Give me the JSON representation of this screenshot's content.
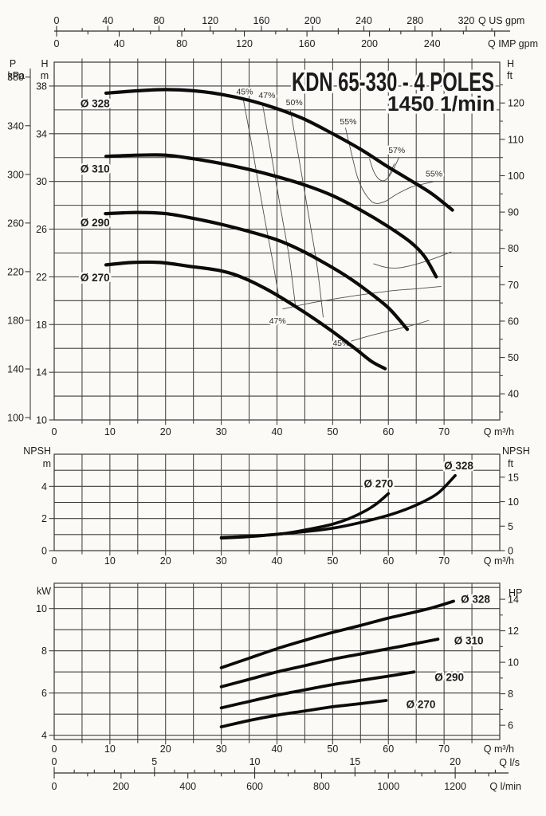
{
  "colors": {
    "background": "#fbfaf7",
    "grid": "#3e3e3e",
    "curve": "#0b0b0b",
    "efficiency_line": "#4f4f4f",
    "text": "#1c1c1c"
  },
  "title": {
    "model": "KDN 65-330 - 4 POLES",
    "speed": "1450 1/min"
  },
  "units": {
    "pressure": "P",
    "pressure_unit": "kPa",
    "head": "H",
    "meters": "m",
    "feet": "ft",
    "npsh": "NPSH",
    "kw": "kW",
    "hp": "HP",
    "q_us_gpm": "Q US gpm",
    "q_imp_gpm": "Q IMP gpm",
    "q_m3h": "Q m³/h",
    "q_ls": "Q l/s",
    "q_lmin": "Q l/min"
  },
  "top_axis": {
    "us": {
      "unit": "Q US gpm",
      "tick_labels": [
        0,
        40,
        80,
        120,
        160,
        200,
        240,
        280,
        320
      ]
    },
    "imp": {
      "unit": "Q IMP gpm",
      "tick_labels": [
        0,
        40,
        80,
        120,
        160,
        200,
        240
      ]
    }
  },
  "bottom_axis": {
    "ls": {
      "unit": "Q l/s",
      "tick_labels": [
        0,
        5,
        10,
        15,
        20
      ]
    },
    "lmin": {
      "unit": "Q l/min",
      "tick_labels": [
        0,
        200,
        400,
        600,
        800,
        1000,
        1200
      ]
    }
  },
  "chart_data": [
    {
      "id": "head",
      "type": "line",
      "title": "KDN 65-330 - 4 POLES",
      "subtitle": "1450 1/min",
      "x_axis": {
        "unit": "Q m³/h",
        "range": [
          0,
          80
        ],
        "tick_labels": [
          0,
          10,
          20,
          30,
          40,
          50,
          60,
          70
        ],
        "grid_step": 5
      },
      "y_axis_m": {
        "unit": "H m",
        "range": [
          10,
          40
        ],
        "tick_labels": [
          38,
          34,
          30,
          26,
          22,
          18,
          14,
          10
        ],
        "grid_step": 2
      },
      "y_axis_kpa": {
        "unit": "P kPa",
        "tick_labels": [
          380,
          340,
          300,
          260,
          220,
          180,
          140,
          100
        ]
      },
      "y_axis_ft": {
        "unit": "H ft",
        "tick_labels": [
          120,
          110,
          100,
          90,
          80,
          70,
          60,
          50,
          40
        ]
      },
      "series": [
        {
          "name": "Ø 328",
          "label_at": [
            4.7,
            36.5
          ],
          "points": [
            [
              9.3,
              37.4
            ],
            [
              15,
              37.6
            ],
            [
              20,
              37.7
            ],
            [
              25,
              37.6
            ],
            [
              30,
              37.3
            ],
            [
              35,
              36.8
            ],
            [
              40,
              36.1
            ],
            [
              45,
              35.2
            ],
            [
              50,
              34.0
            ],
            [
              55,
              32.7
            ],
            [
              60,
              31.2
            ],
            [
              65,
              29.8
            ],
            [
              68,
              28.9
            ],
            [
              71.5,
              27.6
            ]
          ]
        },
        {
          "name": "Ø 310",
          "label_at": [
            4.7,
            31.0
          ],
          "points": [
            [
              9.3,
              32.1
            ],
            [
              15,
              32.2
            ],
            [
              20,
              32.2
            ],
            [
              25,
              31.9
            ],
            [
              30,
              31.5
            ],
            [
              35,
              31.0
            ],
            [
              40,
              30.4
            ],
            [
              45,
              29.7
            ],
            [
              50,
              28.8
            ],
            [
              55,
              27.6
            ],
            [
              60,
              26.2
            ],
            [
              64,
              24.9
            ],
            [
              66.5,
              23.7
            ],
            [
              68.6,
              22.0
            ]
          ]
        },
        {
          "name": "Ø 290",
          "label_at": [
            4.7,
            26.5
          ],
          "points": [
            [
              9.2,
              27.3
            ],
            [
              15,
              27.4
            ],
            [
              20,
              27.3
            ],
            [
              25,
              26.9
            ],
            [
              30,
              26.4
            ],
            [
              35,
              25.8
            ],
            [
              40,
              25.1
            ],
            [
              44,
              24.3
            ],
            [
              48,
              23.3
            ],
            [
              52,
              22.2
            ],
            [
              56,
              20.9
            ],
            [
              60,
              19.4
            ],
            [
              63.4,
              17.6
            ]
          ]
        },
        {
          "name": "Ø 270",
          "label_at": [
            4.7,
            21.9
          ],
          "points": [
            [
              9.3,
              23.0
            ],
            [
              14,
              23.2
            ],
            [
              19,
              23.2
            ],
            [
              24,
              22.9
            ],
            [
              30,
              22.5
            ],
            [
              34,
              21.9
            ],
            [
              38,
              21.0
            ],
            [
              42,
              19.9
            ],
            [
              46,
              18.7
            ],
            [
              50,
              17.4
            ],
            [
              54,
              16.0
            ],
            [
              57,
              14.9
            ],
            [
              59.4,
              14.3
            ]
          ]
        }
      ],
      "efficiency": [
        {
          "label": "45%",
          "label_at": [
            34.2,
            37.5
          ],
          "points": [
            [
              33.9,
              37.0
            ],
            [
              35.3,
              33.5
            ],
            [
              36.6,
              30.0
            ],
            [
              37.9,
              26.6
            ],
            [
              39.2,
              23.4
            ],
            [
              40.3,
              20.4
            ]
          ]
        },
        {
          "label": "47%",
          "label_at": [
            38.2,
            37.2
          ],
          "points": [
            [
              37.4,
              36.5
            ],
            [
              38.6,
              33.3
            ],
            [
              39.8,
              30.0
            ],
            [
              41.0,
              26.8
            ],
            [
              42.2,
              23.6
            ],
            [
              43.3,
              19.6
            ]
          ]
        },
        {
          "label": "50%",
          "label_at": [
            43.1,
            36.6
          ],
          "points": [
            [
              42.4,
              36.0
            ],
            [
              43.6,
              32.8
            ],
            [
              44.8,
              29.6
            ],
            [
              46.0,
              26.3
            ],
            [
              47.2,
              22.9
            ],
            [
              48.3,
              18.6
            ]
          ]
        },
        {
          "label": "55%",
          "label_at": [
            52.8,
            35.0
          ],
          "points": [
            [
              52.3,
              34.5
            ],
            [
              53.4,
              32.3
            ],
            [
              54.5,
              30.3
            ],
            [
              55.8,
              29.0
            ],
            [
              57.4,
              28.2
            ],
            [
              59.3,
              28.3
            ],
            [
              61.4,
              28.9
            ],
            [
              64.0,
              29.5
            ],
            [
              66.4,
              29.8
            ],
            [
              68.3,
              30.0
            ]
          ]
        },
        {
          "label": "57%",
          "label_at": [
            61.5,
            32.6
          ],
          "points": [
            [
              56.6,
              31.9
            ],
            [
              57.4,
              30.8
            ],
            [
              58.4,
              30.15
            ],
            [
              59.4,
              30.1
            ],
            [
              60.4,
              30.6
            ],
            [
              61.3,
              31.4
            ],
            [
              61.9,
              32.0
            ]
          ],
          "leader": [
            [
              61.1,
              31.5
            ],
            [
              60.0,
              30.4
            ]
          ]
        },
        {
          "label": "55%",
          "label_at": [
            68.2,
            30.6
          ],
          "points": [
            [
              57.3,
              23.1
            ],
            [
              59.5,
              22.8
            ],
            [
              61.8,
              22.75
            ],
            [
              64.5,
              23.0
            ],
            [
              68.0,
              23.5
            ],
            [
              71.3,
              24.1
            ]
          ]
        },
        {
          "label": "47%",
          "label_at": [
            40.1,
            18.3
          ],
          "points": [
            [
              41.0,
              19.3
            ],
            [
              46,
              19.8
            ],
            [
              51,
              20.2
            ],
            [
              56,
              20.55
            ],
            [
              61,
              20.85
            ],
            [
              65,
              21.0
            ],
            [
              69.5,
              21.2
            ]
          ]
        },
        {
          "label": "45%",
          "label_at": [
            51.5,
            16.4
          ],
          "points": [
            [
              53.3,
              16.6
            ],
            [
              57,
              17.1
            ],
            [
              60.5,
              17.5
            ],
            [
              64,
              17.9
            ],
            [
              67.3,
              18.35
            ]
          ]
        }
      ]
    },
    {
      "id": "npsh",
      "type": "line",
      "x_axis": {
        "unit": "Q m³/h",
        "range": [
          0,
          80
        ],
        "tick_labels": [
          0,
          10,
          20,
          30,
          40,
          50,
          60,
          70
        ],
        "grid_step": 5
      },
      "y_axis_m": {
        "unit": "NPSH m",
        "range": [
          0,
          6
        ],
        "tick_labels": [
          4,
          2,
          0
        ],
        "grid_step": 1
      },
      "y_axis_ft": {
        "unit": "NPSH ft",
        "tick_labels": [
          15,
          10,
          5,
          0
        ]
      },
      "series": [
        {
          "name": "Ø 270",
          "label_at": [
            55.6,
            4.15
          ],
          "points": [
            [
              30,
              0.78
            ],
            [
              34,
              0.85
            ],
            [
              38,
              0.95
            ],
            [
              42,
              1.1
            ],
            [
              46,
              1.35
            ],
            [
              50,
              1.65
            ],
            [
              53,
              2.0
            ],
            [
              56,
              2.5
            ],
            [
              58,
              2.95
            ],
            [
              60,
              3.55
            ]
          ]
        },
        {
          "name": "Ø 328",
          "label_at": [
            70.0,
            5.25
          ],
          "points": [
            [
              30,
              0.82
            ],
            [
              35,
              0.9
            ],
            [
              40,
              1.02
            ],
            [
              45,
              1.18
            ],
            [
              50,
              1.4
            ],
            [
              55,
              1.75
            ],
            [
              60,
              2.2
            ],
            [
              63,
              2.55
            ],
            [
              66,
              3.0
            ],
            [
              69,
              3.6
            ],
            [
              72,
              4.67
            ]
          ]
        }
      ]
    },
    {
      "id": "power",
      "type": "line",
      "x_axis": {
        "unit": "Q m³/h",
        "range": [
          0,
          80
        ],
        "tick_labels": [
          0,
          10,
          20,
          30,
          40,
          50,
          60,
          70
        ],
        "grid_step": 5
      },
      "x_axis_ls": {
        "unit": "Q l/s",
        "tick_labels": [
          0,
          5,
          10,
          15,
          20
        ]
      },
      "x_axis_lmin": {
        "unit": "Q l/min",
        "tick_labels": [
          0,
          200,
          400,
          600,
          800,
          1000,
          1200
        ]
      },
      "y_axis_kw": {
        "unit": "kW",
        "range": [
          3.8,
          11.2
        ],
        "tick_labels": [
          10,
          8,
          6,
          4
        ],
        "grid_step": 1
      },
      "y_axis_hp": {
        "unit": "HP",
        "tick_labels": [
          14,
          12,
          10,
          8,
          6
        ]
      },
      "series": [
        {
          "name": "Ø 328",
          "label_at": [
            73.0,
            10.42
          ],
          "points": [
            [
              30,
              7.2
            ],
            [
              35,
              7.65
            ],
            [
              40,
              8.1
            ],
            [
              45,
              8.5
            ],
            [
              50,
              8.87
            ],
            [
              55,
              9.2
            ],
            [
              60,
              9.55
            ],
            [
              65,
              9.85
            ],
            [
              68,
              10.05
            ],
            [
              71.7,
              10.35
            ]
          ]
        },
        {
          "name": "Ø 310",
          "label_at": [
            71.8,
            8.46
          ],
          "points": [
            [
              30,
              6.3
            ],
            [
              35,
              6.65
            ],
            [
              40,
              7.0
            ],
            [
              45,
              7.3
            ],
            [
              50,
              7.6
            ],
            [
              55,
              7.85
            ],
            [
              60,
              8.1
            ],
            [
              65,
              8.35
            ],
            [
              68.9,
              8.55
            ]
          ]
        },
        {
          "name": "Ø 290",
          "label_at": [
            68.3,
            6.72
          ],
          "points": [
            [
              30,
              5.3
            ],
            [
              35,
              5.6
            ],
            [
              40,
              5.9
            ],
            [
              45,
              6.15
            ],
            [
              50,
              6.4
            ],
            [
              55,
              6.6
            ],
            [
              60,
              6.8
            ],
            [
              64.6,
              7.0
            ]
          ]
        },
        {
          "name": "Ø 270",
          "label_at": [
            63.2,
            5.44
          ],
          "points": [
            [
              30,
              4.4
            ],
            [
              35,
              4.7
            ],
            [
              40,
              4.95
            ],
            [
              45,
              5.15
            ],
            [
              50,
              5.35
            ],
            [
              55,
              5.5
            ],
            [
              59.6,
              5.65
            ]
          ]
        }
      ]
    }
  ]
}
